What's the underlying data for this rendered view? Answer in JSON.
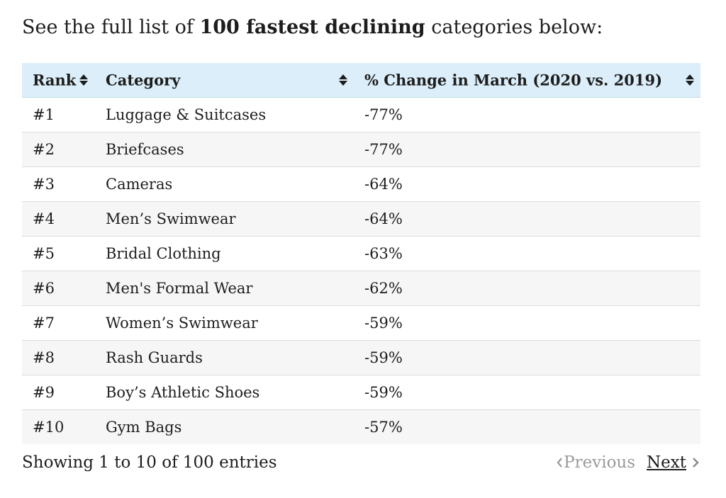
{
  "intro": {
    "prefix": "See the full list of ",
    "emphasis": "100 fastest declining",
    "suffix": " categories below:"
  },
  "table": {
    "headers": {
      "rank": "Rank",
      "category": "Category",
      "change": "% Change in March (2020 vs. 2019)"
    },
    "rows": [
      {
        "rank": "#1",
        "category": "Luggage & Suitcases",
        "change": "-77%"
      },
      {
        "rank": "#2",
        "category": "Briefcases",
        "change": "-77%"
      },
      {
        "rank": "#3",
        "category": "Cameras",
        "change": "-64%"
      },
      {
        "rank": "#4",
        "category": "Men’s Swimwear",
        "change": "-64%"
      },
      {
        "rank": "#5",
        "category": "Bridal Clothing",
        "change": "-63%"
      },
      {
        "rank": "#6",
        "category": "Men's Formal Wear",
        "change": "-62%"
      },
      {
        "rank": "#7",
        "category": "Women’s Swimwear",
        "change": "-59%"
      },
      {
        "rank": "#8",
        "category": "Rash Guards",
        "change": "-59%"
      },
      {
        "rank": "#9",
        "category": "Boy’s Athletic Shoes",
        "change": "-59%"
      },
      {
        "rank": "#10",
        "category": "Gym Bags",
        "change": "-57%"
      }
    ]
  },
  "footer": {
    "info": "Showing 1 to 10 of 100 entries",
    "previous_label": "Previous",
    "next_label": "Next"
  },
  "icons": {
    "sort": "sort-updown-icon",
    "previous": "chevron-left-icon",
    "next": "chevron-right-icon"
  },
  "colors": {
    "header_bg": "#dbeef9",
    "row_alt_bg": "#f6f6f6",
    "disabled_text": "#9a9a9a"
  }
}
